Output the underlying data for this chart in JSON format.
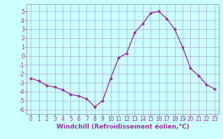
{
  "x": [
    0,
    1,
    2,
    3,
    4,
    5,
    6,
    7,
    8,
    9,
    10,
    11,
    12,
    13,
    14,
    15,
    16,
    17,
    18,
    19,
    20,
    21,
    22,
    23
  ],
  "y": [
    -2.5,
    -2.8,
    -3.3,
    -3.5,
    -3.8,
    -4.3,
    -4.5,
    -4.8,
    -5.7,
    -5.0,
    -2.5,
    -0.2,
    0.3,
    2.6,
    3.6,
    4.8,
    5.0,
    4.2,
    3.0,
    1.0,
    -1.4,
    -2.2,
    -3.2,
    -3.7
  ],
  "line_color": "#993399",
  "marker": "D",
  "marker_size": 2.0,
  "bg_color": "#ccffff",
  "grid_color": "#aaaacc",
  "xlabel": "Windchill (Refroidissement éolien,°C)",
  "xlim": [
    -0.5,
    23.5
  ],
  "ylim": [
    -6.5,
    5.8
  ],
  "yticks": [
    -6,
    -5,
    -4,
    -3,
    -2,
    -1,
    0,
    1,
    2,
    3,
    4,
    5
  ],
  "xticks": [
    0,
    1,
    2,
    3,
    4,
    5,
    6,
    7,
    8,
    9,
    10,
    11,
    12,
    13,
    14,
    15,
    16,
    17,
    18,
    19,
    20,
    21,
    22,
    23
  ],
  "tick_color": "#993399",
  "label_color": "#993399",
  "xlabel_fontsize": 6.5,
  "tick_fontsize": 5.5,
  "linewidth": 1.0
}
